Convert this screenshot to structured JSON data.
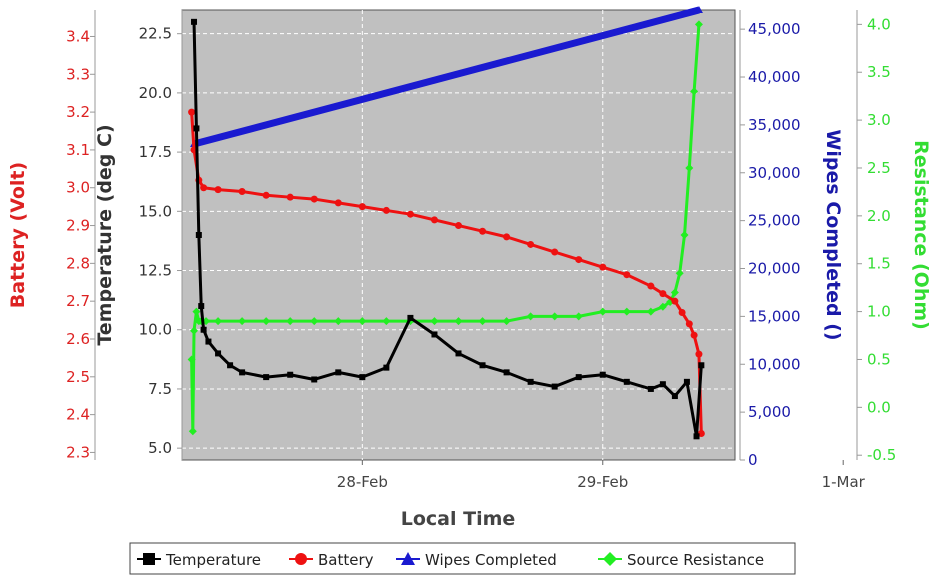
{
  "chart_data": {
    "type": "line",
    "title": "",
    "xlabel": "Local Time",
    "x_ticks": [
      "28-Feb",
      "29-Feb",
      "1-Mar"
    ],
    "x_range_days": [
      -0.75,
      1.55
    ],
    "plot_background": "#c0c0c0",
    "grid": true,
    "legend_position": "bottom",
    "axes": {
      "battery": {
        "label": "Battery (Volt)",
        "color": "#dd2222",
        "side": "left",
        "range": [
          2.28,
          3.47
        ],
        "ticks": [
          "3.4",
          "3.3",
          "3.2",
          "3.1",
          "3.0",
          "2.9",
          "2.8",
          "2.7",
          "2.6",
          "2.5",
          "2.4",
          "2.3"
        ]
      },
      "temperature": {
        "label": "Temperature (deg C)",
        "color": "#333333",
        "side": "left",
        "range": [
          4.5,
          23.5
        ],
        "ticks": [
          "22.5",
          "20.0",
          "17.5",
          "15.0",
          "12.5",
          "10.0",
          "7.5",
          "5.0"
        ]
      },
      "wipes": {
        "label": "Wipes Completed ()",
        "color": "#1a1aa8",
        "side": "right",
        "range": [
          0,
          47000
        ],
        "ticks": [
          "45,000",
          "40,000",
          "35,000",
          "30,000",
          "25,000",
          "20,000",
          "15,000",
          "10,000",
          "5,000",
          "0"
        ]
      },
      "resistance": {
        "label": "Resistance (Ohm)",
        "color": "#33dd33",
        "side": "right",
        "range": [
          -0.55,
          4.15
        ],
        "ticks": [
          "4.0",
          "3.5",
          "3.0",
          "2.5",
          "2.0",
          "1.5",
          "1.0",
          "0.5",
          "0.0",
          "-0.5"
        ]
      }
    },
    "series": [
      {
        "name": "Temperature",
        "axis": "temperature",
        "color": "#000000",
        "marker": "square",
        "x": [
          -0.7,
          -0.69,
          -0.68,
          -0.67,
          -0.66,
          -0.64,
          -0.6,
          -0.55,
          -0.5,
          -0.4,
          -0.3,
          -0.2,
          -0.1,
          0.0,
          0.1,
          0.2,
          0.3,
          0.4,
          0.5,
          0.6,
          0.7,
          0.8,
          0.9,
          1.0,
          1.1,
          1.2,
          1.25,
          1.3,
          1.35,
          1.39,
          1.41
        ],
        "y": [
          23.0,
          18.5,
          14.0,
          11.0,
          10.0,
          9.5,
          9.0,
          8.5,
          8.2,
          8.0,
          8.1,
          7.9,
          8.2,
          8.0,
          8.4,
          10.5,
          9.8,
          9.0,
          8.5,
          8.2,
          7.8,
          7.6,
          8.0,
          8.1,
          7.8,
          7.5,
          7.7,
          7.2,
          7.8,
          5.5,
          8.5
        ]
      },
      {
        "name": "Battery",
        "axis": "battery",
        "color": "#ee1111",
        "marker": "circle",
        "x": [
          -0.71,
          -0.7,
          -0.68,
          -0.66,
          -0.6,
          -0.5,
          -0.4,
          -0.3,
          -0.2,
          -0.1,
          0.0,
          0.1,
          0.2,
          0.3,
          0.4,
          0.5,
          0.6,
          0.7,
          0.8,
          0.9,
          1.0,
          1.1,
          1.2,
          1.25,
          1.3,
          1.33,
          1.36,
          1.38,
          1.4,
          1.41
        ],
        "y": [
          3.2,
          3.1,
          3.02,
          3.0,
          2.995,
          2.99,
          2.98,
          2.975,
          2.97,
          2.96,
          2.95,
          2.94,
          2.93,
          2.915,
          2.9,
          2.885,
          2.87,
          2.85,
          2.83,
          2.81,
          2.79,
          2.77,
          2.74,
          2.72,
          2.7,
          2.67,
          2.64,
          2.61,
          2.56,
          2.35
        ]
      },
      {
        "name": "Wipes Completed",
        "axis": "wipes",
        "color": "#1a1ad0",
        "marker": "triangle",
        "x": [
          -0.7,
          1.4
        ],
        "y": [
          33000,
          47000
        ]
      },
      {
        "name": "Source Resistance",
        "axis": "resistance",
        "color": "#22ee22",
        "marker": "diamond",
        "x": [
          -0.71,
          -0.705,
          -0.7,
          -0.69,
          -0.68,
          -0.67,
          -0.65,
          -0.6,
          -0.5,
          -0.4,
          -0.3,
          -0.2,
          -0.1,
          0.0,
          0.1,
          0.2,
          0.3,
          0.4,
          0.5,
          0.6,
          0.7,
          0.8,
          0.9,
          1.0,
          1.1,
          1.2,
          1.25,
          1.28,
          1.3,
          1.32,
          1.34,
          1.36,
          1.38,
          1.4
        ],
        "y": [
          0.5,
          -0.25,
          0.8,
          1.0,
          0.9,
          0.9,
          0.9,
          0.9,
          0.9,
          0.9,
          0.9,
          0.9,
          0.9,
          0.9,
          0.9,
          0.9,
          0.9,
          0.9,
          0.9,
          0.9,
          0.95,
          0.95,
          0.95,
          1.0,
          1.0,
          1.0,
          1.05,
          1.1,
          1.2,
          1.4,
          1.8,
          2.5,
          3.3,
          4.0
        ]
      }
    ]
  }
}
